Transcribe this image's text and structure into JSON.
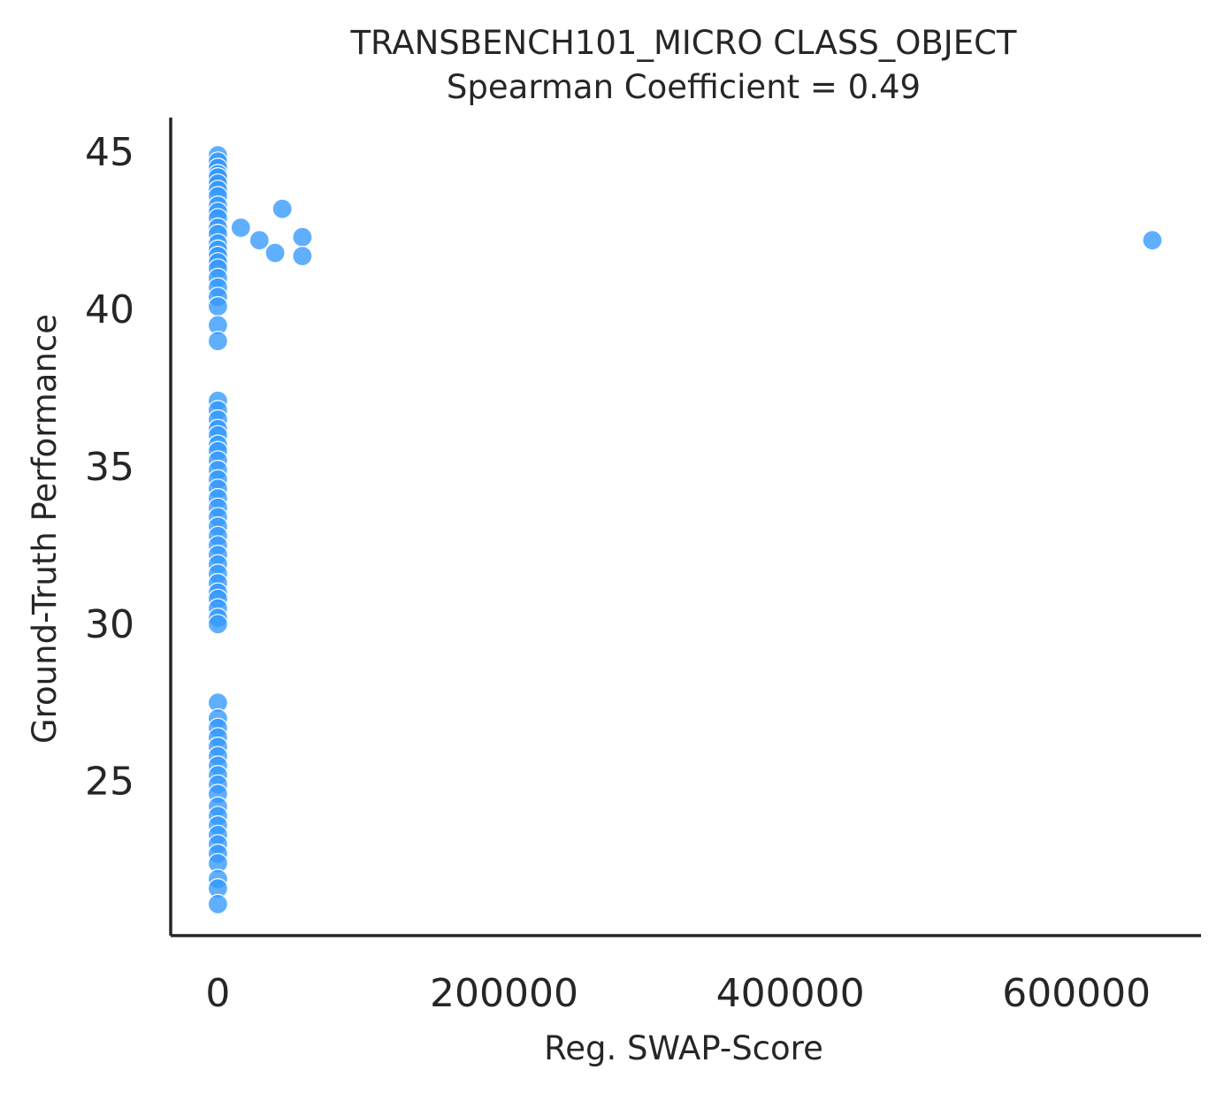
{
  "chart_data": {
    "type": "scatter",
    "title": "TRANSBENCH101_MICRO CLASS_OBJECT",
    "subtitle": "Spearman Coefficient = 0.49",
    "xlabel": "Reg. SWAP-Score",
    "ylabel": "Ground-Truth Performance",
    "xlim": [
      -33000,
      687000
    ],
    "ylim": [
      20.1,
      46.1
    ],
    "xticks": [
      0,
      200000,
      400000,
      600000
    ],
    "xtick_labels": [
      "0",
      "200000",
      "400000",
      "600000"
    ],
    "yticks": [
      25,
      30,
      35,
      40,
      45
    ],
    "ytick_labels": [
      "25",
      "30",
      "35",
      "40",
      "45"
    ],
    "grid": false,
    "color": "#3399ff",
    "points": [
      {
        "x": 0,
        "y": 44.9
      },
      {
        "x": 0,
        "y": 44.7
      },
      {
        "x": 0,
        "y": 44.5
      },
      {
        "x": 0,
        "y": 44.3
      },
      {
        "x": 0,
        "y": 44.2
      },
      {
        "x": 0,
        "y": 44.0
      },
      {
        "x": 0,
        "y": 43.8
      },
      {
        "x": 0,
        "y": 43.6
      },
      {
        "x": 0,
        "y": 43.3
      },
      {
        "x": 0,
        "y": 43.1
      },
      {
        "x": 0,
        "y": 42.9
      },
      {
        "x": 0,
        "y": 42.6
      },
      {
        "x": 0,
        "y": 42.4
      },
      {
        "x": 0,
        "y": 42.1
      },
      {
        "x": 0,
        "y": 41.9
      },
      {
        "x": 0,
        "y": 41.7
      },
      {
        "x": 0,
        "y": 41.5
      },
      {
        "x": 0,
        "y": 41.3
      },
      {
        "x": 0,
        "y": 41.0
      },
      {
        "x": 0,
        "y": 40.7
      },
      {
        "x": 0,
        "y": 40.4
      },
      {
        "x": 0,
        "y": 40.1
      },
      {
        "x": 0,
        "y": 39.5
      },
      {
        "x": 0,
        "y": 39.0
      },
      {
        "x": 0,
        "y": 37.1
      },
      {
        "x": 0,
        "y": 36.8
      },
      {
        "x": 0,
        "y": 36.5
      },
      {
        "x": 0,
        "y": 36.2
      },
      {
        "x": 0,
        "y": 36.0
      },
      {
        "x": 0,
        "y": 35.7
      },
      {
        "x": 0,
        "y": 35.5
      },
      {
        "x": 0,
        "y": 35.2
      },
      {
        "x": 0,
        "y": 34.9
      },
      {
        "x": 0,
        "y": 34.6
      },
      {
        "x": 0,
        "y": 34.3
      },
      {
        "x": 0,
        "y": 34.0
      },
      {
        "x": 0,
        "y": 33.7
      },
      {
        "x": 0,
        "y": 33.4
      },
      {
        "x": 0,
        "y": 33.1
      },
      {
        "x": 0,
        "y": 32.8
      },
      {
        "x": 0,
        "y": 32.5
      },
      {
        "x": 0,
        "y": 32.2
      },
      {
        "x": 0,
        "y": 31.9
      },
      {
        "x": 0,
        "y": 31.6
      },
      {
        "x": 0,
        "y": 31.3
      },
      {
        "x": 0,
        "y": 31.0
      },
      {
        "x": 0,
        "y": 30.8
      },
      {
        "x": 0,
        "y": 30.5
      },
      {
        "x": 0,
        "y": 30.2
      },
      {
        "x": 0,
        "y": 30.0
      },
      {
        "x": 0,
        "y": 27.5
      },
      {
        "x": 0,
        "y": 27.0
      },
      {
        "x": 0,
        "y": 26.7
      },
      {
        "x": 0,
        "y": 26.4
      },
      {
        "x": 0,
        "y": 26.1
      },
      {
        "x": 0,
        "y": 25.8
      },
      {
        "x": 0,
        "y": 25.5
      },
      {
        "x": 0,
        "y": 25.2
      },
      {
        "x": 0,
        "y": 24.9
      },
      {
        "x": 0,
        "y": 24.6
      },
      {
        "x": 0,
        "y": 24.2
      },
      {
        "x": 0,
        "y": 23.9
      },
      {
        "x": 0,
        "y": 23.6
      },
      {
        "x": 0,
        "y": 23.3
      },
      {
        "x": 0,
        "y": 23.0
      },
      {
        "x": 0,
        "y": 22.7
      },
      {
        "x": 0,
        "y": 22.4
      },
      {
        "x": 0,
        "y": 21.9
      },
      {
        "x": 0,
        "y": 21.6
      },
      {
        "x": 0,
        "y": 21.1
      },
      {
        "x": 16000,
        "y": 42.6
      },
      {
        "x": 29000,
        "y": 42.2
      },
      {
        "x": 40000,
        "y": 41.8
      },
      {
        "x": 45000,
        "y": 43.2
      },
      {
        "x": 59000,
        "y": 42.3
      },
      {
        "x": 59000,
        "y": 41.7
      },
      {
        "x": 653000,
        "y": 42.2
      }
    ]
  }
}
